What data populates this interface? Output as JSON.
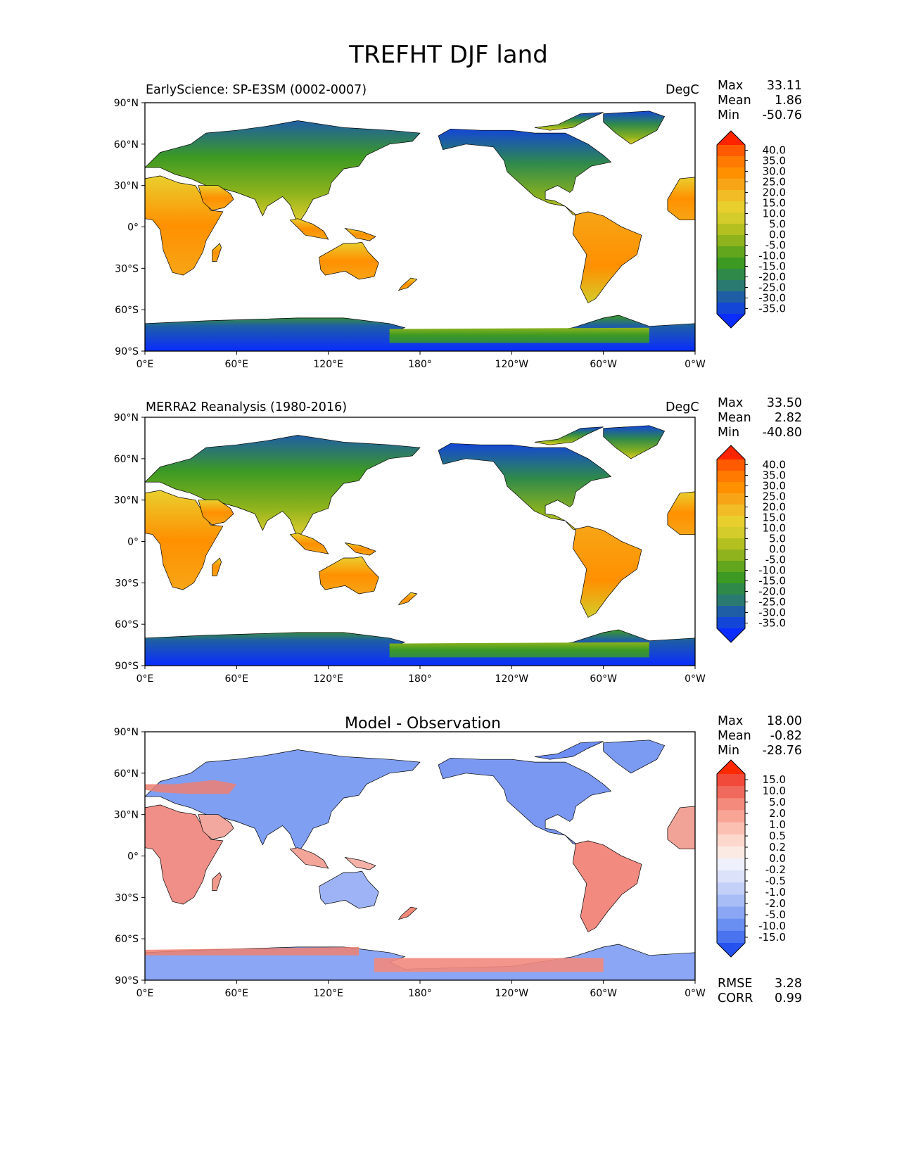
{
  "figure": {
    "title": "TREFHT DJF land"
  },
  "axes": {
    "lat_ticks": [
      "90°N",
      "60°N",
      "30°N",
      "0°",
      "30°S",
      "60°S",
      "90°S"
    ],
    "lon_ticks": [
      "0°E",
      "60°E",
      "120°E",
      "180°",
      "120°W",
      "60°W",
      "0°W"
    ],
    "lat_values": [
      90,
      60,
      30,
      0,
      -30,
      -60,
      -90
    ],
    "lon_values": [
      0,
      60,
      120,
      180,
      240,
      300,
      360
    ]
  },
  "panels": [
    {
      "id": "test",
      "title_left": "EarlyScience: SP-E3SM (0002-0007)",
      "title_right": "DegC",
      "stats": [
        {
          "label": "Max",
          "value": "33.11"
        },
        {
          "label": "Mean",
          "value": "1.86"
        },
        {
          "label": "Min",
          "value": "-50.76"
        }
      ],
      "colorbar": {
        "ticks": [
          "40.0",
          "35.0",
          "30.0",
          "25.0",
          "20.0",
          "15.0",
          "10.0",
          "5.0",
          "0.0",
          "-5.0",
          "-10.0",
          "-15.0",
          "-20.0",
          "-25.0",
          "-30.0",
          "-35.0"
        ],
        "colors": [
          "#ff2400",
          "#ff5a00",
          "#ff7a00",
          "#ff9000",
          "#f7a516",
          "#f1bc26",
          "#e9cf2e",
          "#d3cc2a",
          "#b3c020",
          "#8eb31c",
          "#62a61e",
          "#3c9a23",
          "#2f8a4a",
          "#2b7a72",
          "#1f5ea5",
          "#1346d6",
          "#0a2cff"
        ]
      }
    },
    {
      "id": "reference",
      "title_left": "MERRA2 Reanalysis (1980-2016)",
      "title_right": "DegC",
      "stats": [
        {
          "label": "Max",
          "value": "33.50"
        },
        {
          "label": "Mean",
          "value": "2.82"
        },
        {
          "label": "Min",
          "value": "-40.80"
        }
      ],
      "colorbar": {
        "ticks": [
          "40.0",
          "35.0",
          "30.0",
          "25.0",
          "20.0",
          "15.0",
          "10.0",
          "5.0",
          "0.0",
          "-5.0",
          "-10.0",
          "-15.0",
          "-20.0",
          "-25.0",
          "-30.0",
          "-35.0"
        ],
        "colors": [
          "#ff2400",
          "#ff5a00",
          "#ff7a00",
          "#ff9000",
          "#f7a516",
          "#f1bc26",
          "#e9cf2e",
          "#d3cc2a",
          "#b3c020",
          "#8eb31c",
          "#62a61e",
          "#3c9a23",
          "#2f8a4a",
          "#2b7a72",
          "#1f5ea5",
          "#1346d6",
          "#0a2cff"
        ]
      }
    },
    {
      "id": "diff",
      "title_center": "Model - Observation",
      "stats": [
        {
          "label": "Max",
          "value": "18.00"
        },
        {
          "label": "Mean",
          "value": "-0.82"
        },
        {
          "label": "Min",
          "value": "-28.76"
        }
      ],
      "extra_stats": [
        {
          "label": "RMSE",
          "value": "3.28"
        },
        {
          "label": "CORR",
          "value": "0.99"
        }
      ],
      "colorbar": {
        "ticks": [
          "15.0",
          "10.0",
          "5.0",
          "2.0",
          "1.0",
          "0.5",
          "0.2",
          "0.0",
          "-0.2",
          "-0.5",
          "-1.0",
          "-2.0",
          "-5.0",
          "-10.0",
          "-15.0"
        ],
        "colors": [
          "#ff2a00",
          "#f24a3a",
          "#ef6a5c",
          "#f48a7c",
          "#f8a596",
          "#fbc0b2",
          "#fcd8cc",
          "#fbeae4",
          "#eef0fb",
          "#dbe2fa",
          "#c4d0f8",
          "#a8bdf6",
          "#8aa6f4",
          "#6a8ff2",
          "#4a73ef",
          "#2652f0"
        ]
      }
    }
  ]
}
